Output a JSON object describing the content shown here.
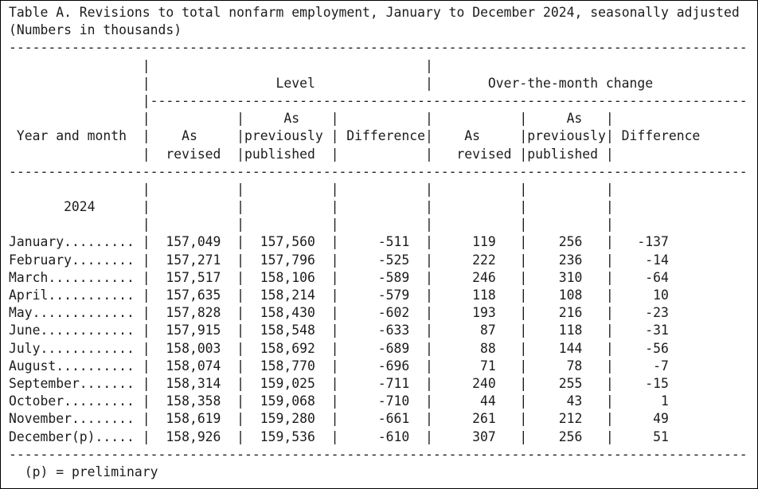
{
  "title": "Table A. Revisions to total nonfarm employment, January to December 2024, seasonally adjusted",
  "subtitle": "(Numbers in thousands)",
  "chrome": {
    "pipe": "|",
    "hr_full": "----------------------------------------------------------------------------------------------",
    "hr_inner": "----------------------------------------------------------------------------"
  },
  "header": {
    "stub": "Year and month",
    "group_level": "Level",
    "group_otm": "Over-the-month change",
    "col_as": "As",
    "col_revised": "revised",
    "col_previously": "previously",
    "col_published": "published",
    "col_difference": "Difference"
  },
  "year_label": "2024",
  "rows": [
    {
      "month": "January.........",
      "level_revised": "157,049",
      "level_published": "157,560",
      "level_difference": "-511",
      "otm_revised": "119",
      "otm_published": "256",
      "otm_difference": "-137"
    },
    {
      "month": "February........",
      "level_revised": "157,271",
      "level_published": "157,796",
      "level_difference": "-525",
      "otm_revised": "222",
      "otm_published": "236",
      "otm_difference": "-14"
    },
    {
      "month": "March...........",
      "level_revised": "157,517",
      "level_published": "158,106",
      "level_difference": "-589",
      "otm_revised": "246",
      "otm_published": "310",
      "otm_difference": "-64"
    },
    {
      "month": "April...........",
      "level_revised": "157,635",
      "level_published": "158,214",
      "level_difference": "-579",
      "otm_revised": "118",
      "otm_published": "108",
      "otm_difference": "10"
    },
    {
      "month": "May.............",
      "level_revised": "157,828",
      "level_published": "158,430",
      "level_difference": "-602",
      "otm_revised": "193",
      "otm_published": "216",
      "otm_difference": "-23"
    },
    {
      "month": "June............",
      "level_revised": "157,915",
      "level_published": "158,548",
      "level_difference": "-633",
      "otm_revised": "87",
      "otm_published": "118",
      "otm_difference": "-31"
    },
    {
      "month": "July............",
      "level_revised": "158,003",
      "level_published": "158,692",
      "level_difference": "-689",
      "otm_revised": "88",
      "otm_published": "144",
      "otm_difference": "-56"
    },
    {
      "month": "August..........",
      "level_revised": "158,074",
      "level_published": "158,770",
      "level_difference": "-696",
      "otm_revised": "71",
      "otm_published": "78",
      "otm_difference": "-7"
    },
    {
      "month": "September.......",
      "level_revised": "158,314",
      "level_published": "159,025",
      "level_difference": "-711",
      "otm_revised": "240",
      "otm_published": "255",
      "otm_difference": "-15"
    },
    {
      "month": "October.........",
      "level_revised": "158,358",
      "level_published": "159,068",
      "level_difference": "-710",
      "otm_revised": "44",
      "otm_published": "43",
      "otm_difference": "1"
    },
    {
      "month": "November........",
      "level_revised": "158,619",
      "level_published": "159,280",
      "level_difference": "-661",
      "otm_revised": "261",
      "otm_published": "212",
      "otm_difference": "49"
    },
    {
      "month": "December(p).....",
      "level_revised": "158,926",
      "level_published": "159,536",
      "level_difference": "-610",
      "otm_revised": "307",
      "otm_published": "256",
      "otm_difference": "51"
    }
  ],
  "footnote": "(p) = preliminary"
}
